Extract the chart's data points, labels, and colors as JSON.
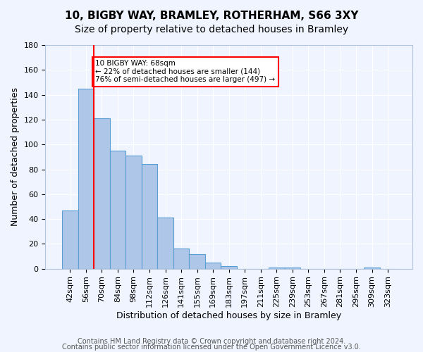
{
  "title1": "10, BIGBY WAY, BRAMLEY, ROTHERHAM, S66 3XY",
  "title2": "Size of property relative to detached houses in Bramley",
  "xlabel": "Distribution of detached houses by size in Bramley",
  "ylabel": "Number of detached properties",
  "bar_labels": [
    "42sqm",
    "56sqm",
    "70sqm",
    "84sqm",
    "98sqm",
    "112sqm",
    "126sqm",
    "141sqm",
    "155sqm",
    "169sqm",
    "183sqm",
    "197sqm",
    "211sqm",
    "225sqm",
    "239sqm",
    "253sqm",
    "267sqm",
    "281sqm",
    "295sqm",
    "309sqm",
    "323sqm"
  ],
  "bar_values": [
    47,
    145,
    121,
    95,
    91,
    84,
    41,
    16,
    12,
    5,
    2,
    0,
    0,
    1,
    1,
    0,
    0,
    0,
    0,
    1,
    0
  ],
  "bar_color": "#aec6e8",
  "bar_edge_color": "#5a9fd4",
  "red_line_x": 1.5,
  "annotation_text": "10 BIGBY WAY: 68sqm\n← 22% of detached houses are smaller (144)\n76% of semi-detached houses are larger (497) →",
  "annotation_box_color": "white",
  "annotation_box_edge_color": "red",
  "red_line_color": "red",
  "ylim": [
    0,
    180
  ],
  "yticks": [
    0,
    20,
    40,
    60,
    80,
    100,
    120,
    140,
    160,
    180
  ],
  "footer1": "Contains HM Land Registry data © Crown copyright and database right 2024.",
  "footer2": "Contains public sector information licensed under the Open Government Licence v3.0.",
  "background_color": "#f0f4ff",
  "grid_color": "white",
  "title1_fontsize": 11,
  "title2_fontsize": 10,
  "xlabel_fontsize": 9,
  "ylabel_fontsize": 9,
  "tick_fontsize": 8,
  "footer_fontsize": 7
}
